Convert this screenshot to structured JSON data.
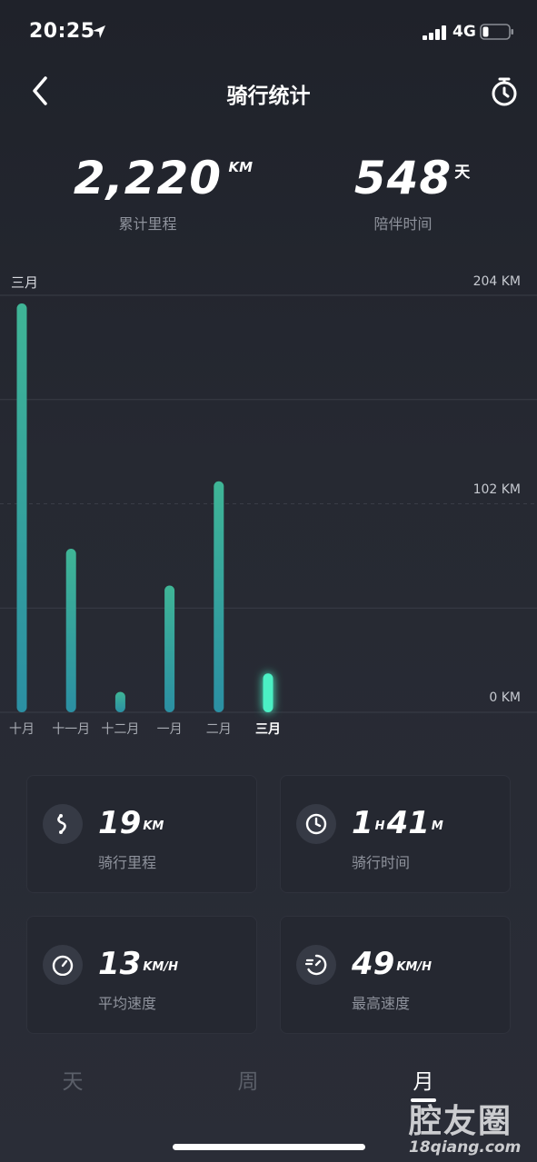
{
  "status_bar": {
    "time": "20:25",
    "network": "4G"
  },
  "nav": {
    "title": "骑行统计"
  },
  "summary": {
    "distance": {
      "value": "2,220",
      "unit": "KM",
      "label": "累计里程"
    },
    "days": {
      "value": "548",
      "unit": "天",
      "label": "陪伴时间"
    }
  },
  "chart_data": {
    "type": "bar",
    "top_label": "三月",
    "categories": [
      "十月",
      "十一月",
      "十二月",
      "一月",
      "二月",
      "三月"
    ],
    "values": [
      200,
      80,
      10,
      62,
      113,
      19
    ],
    "selected_index": 5,
    "ylim": [
      0,
      204
    ],
    "ytick_labels": [
      "204 KM",
      "102 KM",
      "0 KM"
    ],
    "colors": {
      "bar_top": "#3fb596",
      "bar_bottom": "#2b8fa3",
      "selected": "#4cf0c4"
    }
  },
  "stats": [
    {
      "icon": "route-icon",
      "value": "19",
      "unit": "KM",
      "label": "骑行里程"
    },
    {
      "icon": "clock-icon",
      "value_h": "1",
      "unit_h": "H",
      "value_m": "41",
      "unit_m": "M",
      "label": "骑行时间"
    },
    {
      "icon": "speedometer-icon",
      "value": "13",
      "unit": "KM/H",
      "label": "平均速度"
    },
    {
      "icon": "speed-fast-icon",
      "value": "49",
      "unit": "KM/H",
      "label": "最高速度"
    }
  ],
  "tabs": [
    {
      "label": "天",
      "active": false
    },
    {
      "label": "周",
      "active": false
    },
    {
      "label": "月",
      "active": true
    }
  ],
  "watermark": {
    "cn": "腔友圈",
    "en": "18qiang.com"
  }
}
